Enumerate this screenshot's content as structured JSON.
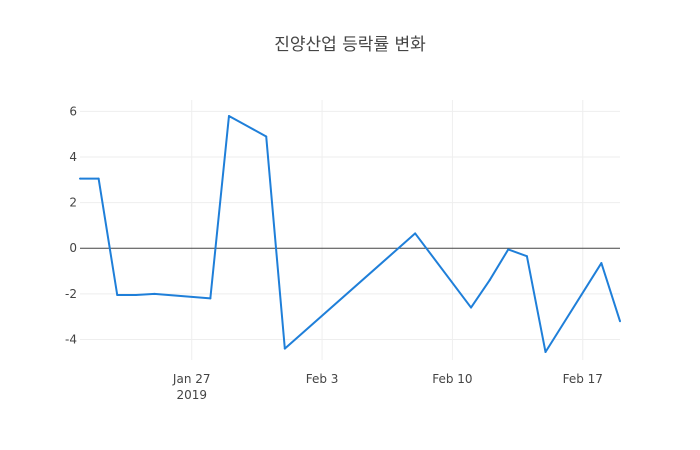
{
  "chart_data": {
    "type": "line",
    "title": "진양산업 등락률 변화",
    "xlabel": "",
    "ylabel": "",
    "x_ticks": [
      {
        "date": "2019-01-27",
        "label": "Jan 27",
        "sublabel": "2019"
      },
      {
        "date": "2019-02-03",
        "label": "Feb 3",
        "sublabel": ""
      },
      {
        "date": "2019-02-10",
        "label": "Feb 10",
        "sublabel": ""
      },
      {
        "date": "2019-02-17",
        "label": "Feb 17",
        "sublabel": ""
      }
    ],
    "y_ticks": [
      6,
      4,
      2,
      0,
      -2,
      -4
    ],
    "xlim": [
      "2019-01-21",
      "2019-02-19"
    ],
    "ylim": [
      -4.9,
      6.5
    ],
    "grid": true,
    "zero_line": true,
    "series": [
      {
        "color": "#1f7fd9",
        "points": [
          {
            "x": "2019-01-21",
            "y": 3.05
          },
          {
            "x": "2019-01-22",
            "y": 3.05
          },
          {
            "x": "2019-01-23",
            "y": -2.05
          },
          {
            "x": "2019-01-24",
            "y": -2.05
          },
          {
            "x": "2019-01-25",
            "y": -2.0
          },
          {
            "x": "2019-01-28",
            "y": -2.2
          },
          {
            "x": "2019-01-29",
            "y": 5.8
          },
          {
            "x": "2019-01-31",
            "y": 4.9
          },
          {
            "x": "2019-02-01",
            "y": -4.4
          },
          {
            "x": "2019-02-08",
            "y": 0.65
          },
          {
            "x": "2019-02-11",
            "y": -2.6
          },
          {
            "x": "2019-02-12",
            "y": -1.4
          },
          {
            "x": "2019-02-13",
            "y": -0.05
          },
          {
            "x": "2019-02-14",
            "y": -0.35
          },
          {
            "x": "2019-02-15",
            "y": -4.55
          },
          {
            "x": "2019-02-18",
            "y": -0.65
          },
          {
            "x": "2019-02-19",
            "y": -3.2
          }
        ]
      }
    ]
  }
}
